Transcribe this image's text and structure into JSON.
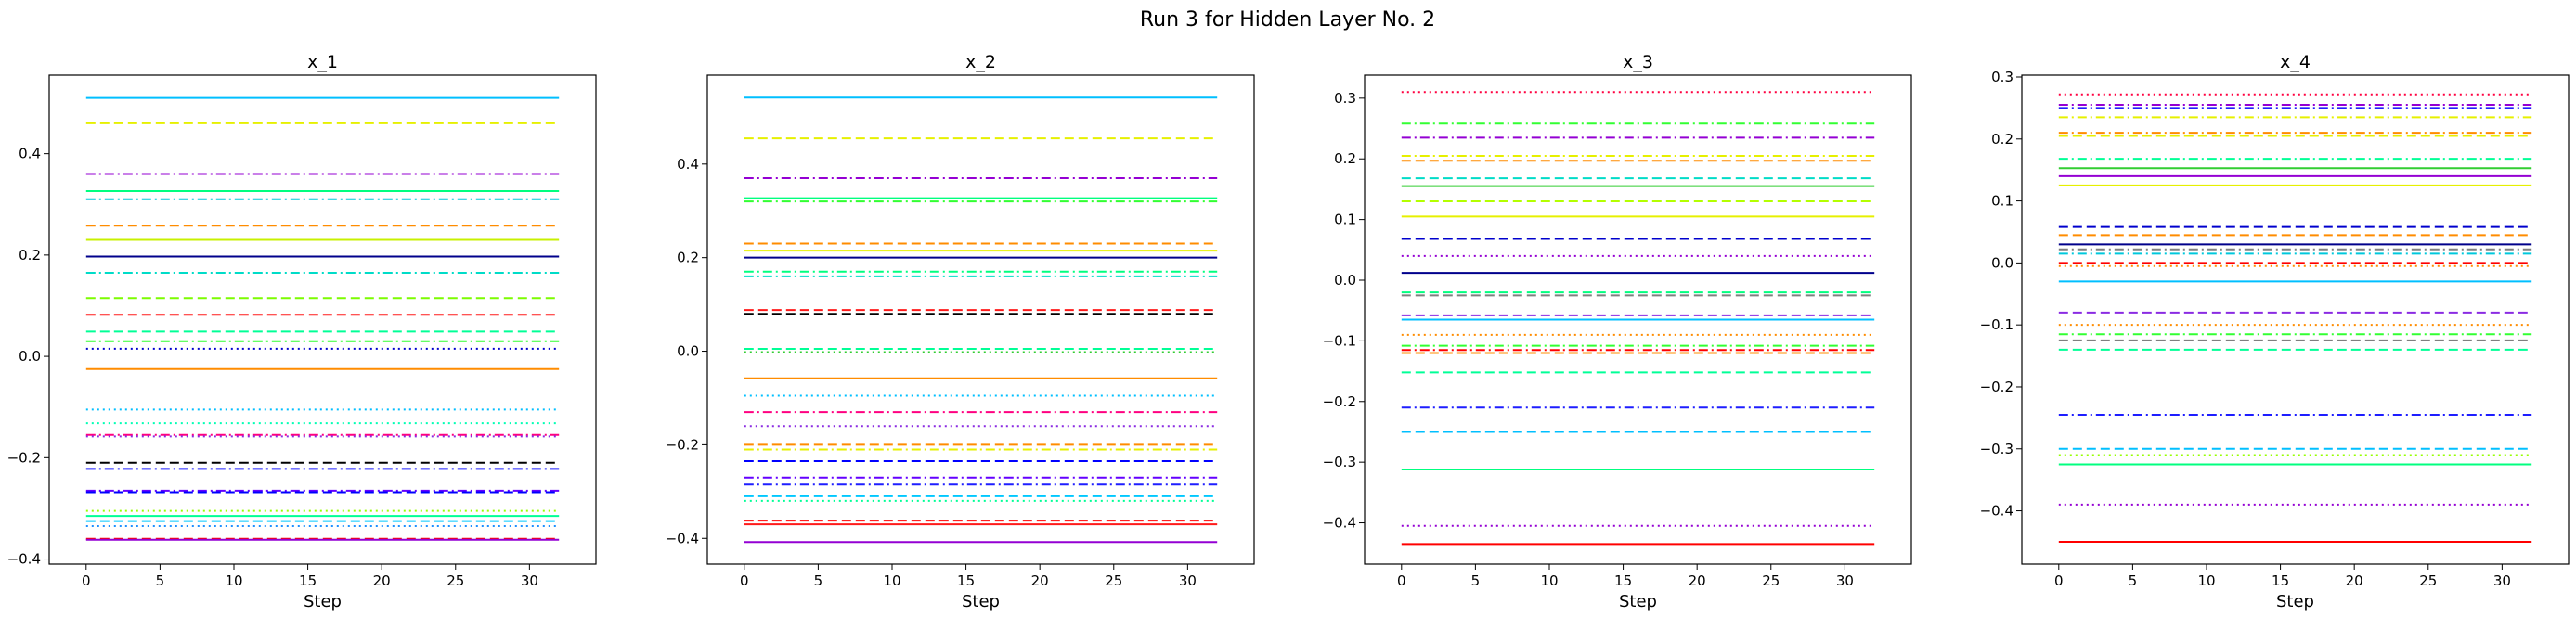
{
  "figure": {
    "title": "Run 3 for Hidden Layer No. 2"
  },
  "chart_data": [
    {
      "type": "line",
      "title": "x_1",
      "xlabel": "Step",
      "ylabel": "",
      "xlim": [
        -2.5,
        34.5
      ],
      "ylim": [
        -0.41,
        0.555
      ],
      "xticks": [
        0,
        5,
        10,
        15,
        20,
        25,
        30
      ],
      "yticks": [
        -0.4,
        -0.2,
        0.0,
        0.2,
        0.4
      ],
      "x_range": [
        0,
        32
      ],
      "series": [
        {
          "y": 0.51,
          "color": "#00bfff",
          "style": "solid"
        },
        {
          "y": 0.46,
          "color": "#e6f000",
          "style": "dashed"
        },
        {
          "y": 0.36,
          "color": "#9400d3",
          "style": "dashdot"
        },
        {
          "y": 0.326,
          "color": "#00ff7f",
          "style": "solid"
        },
        {
          "y": 0.31,
          "color": "#00c8dc",
          "style": "dashdot"
        },
        {
          "y": 0.258,
          "color": "#ff8c00",
          "style": "dashed"
        },
        {
          "y": 0.23,
          "color": "#c8f000",
          "style": "solid"
        },
        {
          "y": 0.197,
          "color": "#00008b",
          "style": "solid"
        },
        {
          "y": 0.165,
          "color": "#00dcc8",
          "style": "dashdot"
        },
        {
          "y": 0.115,
          "color": "#7cfc00",
          "style": "dashed"
        },
        {
          "y": 0.082,
          "color": "#ff1a1a",
          "style": "dashed"
        },
        {
          "y": 0.049,
          "color": "#00ff96",
          "style": "dashed"
        },
        {
          "y": 0.03,
          "color": "#32ff32",
          "style": "dashdot"
        },
        {
          "y": 0.015,
          "color": "#0000cd",
          "style": "dotted"
        },
        {
          "y": -0.025,
          "color": "#ff8c00",
          "style": "solid"
        },
        {
          "y": -0.105,
          "color": "#00bfff",
          "style": "dotted"
        },
        {
          "y": -0.132,
          "color": "#00ffb4",
          "style": "dotted"
        },
        {
          "y": -0.155,
          "color": "#ff0080",
          "style": "dashdot"
        },
        {
          "y": -0.158,
          "color": "#8a2be2",
          "style": "dotted"
        },
        {
          "y": -0.21,
          "color": "#000000",
          "style": "dashed"
        },
        {
          "y": -0.222,
          "color": "#1e1eff",
          "style": "dashdot"
        },
        {
          "y": -0.265,
          "color": "#6400ff",
          "style": "dashdot"
        },
        {
          "y": -0.268,
          "color": "#0000ff",
          "style": "dashed"
        },
        {
          "y": -0.305,
          "color": "#96ff00",
          "style": "dotted"
        },
        {
          "y": -0.315,
          "color": "#00ff96",
          "style": "solid"
        },
        {
          "y": -0.325,
          "color": "#00c8ff",
          "style": "dashed"
        },
        {
          "y": -0.335,
          "color": "#1e90ff",
          "style": "dotted"
        },
        {
          "y": -0.36,
          "color": "#ff0000",
          "style": "dashed"
        },
        {
          "y": -0.362,
          "color": "#9400d3",
          "style": "solid"
        }
      ]
    },
    {
      "type": "line",
      "title": "x_2",
      "xlabel": "Step",
      "ylabel": "",
      "xlim": [
        -2.5,
        34.5
      ],
      "ylim": [
        -0.455,
        0.59
      ],
      "xticks": [
        0,
        5,
        10,
        15,
        20,
        25,
        30
      ],
      "yticks": [
        -0.4,
        -0.2,
        0.0,
        0.2,
        0.4
      ],
      "x_range": [
        0,
        32
      ],
      "series": [
        {
          "y": 0.542,
          "color": "#00bfff",
          "style": "solid"
        },
        {
          "y": 0.455,
          "color": "#e6f000",
          "style": "dashed"
        },
        {
          "y": 0.37,
          "color": "#9400d3",
          "style": "dashdot"
        },
        {
          "y": 0.327,
          "color": "#00ff7f",
          "style": "solid"
        },
        {
          "y": 0.32,
          "color": "#32ff32",
          "style": "dashdot"
        },
        {
          "y": 0.23,
          "color": "#ff8c00",
          "style": "dashed"
        },
        {
          "y": 0.215,
          "color": "#e6f000",
          "style": "solid"
        },
        {
          "y": 0.2,
          "color": "#00008b",
          "style": "solid"
        },
        {
          "y": 0.17,
          "color": "#00ff7f",
          "style": "dashdot"
        },
        {
          "y": 0.16,
          "color": "#00dcc8",
          "style": "dashdot"
        },
        {
          "y": 0.088,
          "color": "#ff1a1a",
          "style": "dashed"
        },
        {
          "y": 0.08,
          "color": "#000000",
          "style": "dashed"
        },
        {
          "y": 0.005,
          "color": "#00ff96",
          "style": "dashed"
        },
        {
          "y": -0.002,
          "color": "#32cd32",
          "style": "dotted"
        },
        {
          "y": -0.058,
          "color": "#ff8c00",
          "style": "solid"
        },
        {
          "y": -0.095,
          "color": "#00bfff",
          "style": "dotted"
        },
        {
          "y": -0.13,
          "color": "#ff0080",
          "style": "dashdot"
        },
        {
          "y": -0.16,
          "color": "#8a2be2",
          "style": "dotted"
        },
        {
          "y": -0.2,
          "color": "#ff8c00",
          "style": "dashed"
        },
        {
          "y": -0.21,
          "color": "#e6f000",
          "style": "dashdot"
        },
        {
          "y": -0.235,
          "color": "#0000ff",
          "style": "dashed"
        },
        {
          "y": -0.27,
          "color": "#6400ff",
          "style": "dashdot"
        },
        {
          "y": -0.285,
          "color": "#1e1eff",
          "style": "dashdot"
        },
        {
          "y": -0.31,
          "color": "#00c8ff",
          "style": "dashed"
        },
        {
          "y": -0.32,
          "color": "#00ff96",
          "style": "dotted"
        },
        {
          "y": -0.362,
          "color": "#ff0000",
          "style": "dashed"
        },
        {
          "y": -0.37,
          "color": "#ff1a1a",
          "style": "solid"
        },
        {
          "y": -0.408,
          "color": "#9400d3",
          "style": "solid"
        }
      ]
    },
    {
      "type": "line",
      "title": "x_3",
      "xlabel": "Step",
      "ylabel": "",
      "xlim": [
        -2.5,
        34.5
      ],
      "ylim": [
        -0.468,
        0.338
      ],
      "xticks": [
        0,
        5,
        10,
        15,
        20,
        25,
        30
      ],
      "yticks": [
        -0.4,
        -0.3,
        -0.2,
        -0.1,
        0.0,
        0.1,
        0.2,
        0.3
      ],
      "x_range": [
        0,
        32
      ],
      "series": [
        {
          "y": 0.31,
          "color": "#ff0040",
          "style": "dotted"
        },
        {
          "y": 0.258,
          "color": "#32ff32",
          "style": "dashdot"
        },
        {
          "y": 0.235,
          "color": "#9400d3",
          "style": "dashdot"
        },
        {
          "y": 0.205,
          "color": "#e6f000",
          "style": "dashdot"
        },
        {
          "y": 0.197,
          "color": "#ff8c00",
          "style": "dashed"
        },
        {
          "y": 0.168,
          "color": "#00dcc8",
          "style": "dashed"
        },
        {
          "y": 0.155,
          "color": "#32cd32",
          "style": "solid"
        },
        {
          "y": 0.13,
          "color": "#b4ff00",
          "style": "dashed"
        },
        {
          "y": 0.105,
          "color": "#e6f000",
          "style": "solid"
        },
        {
          "y": 0.068,
          "color": "#0000cd",
          "style": "dashed"
        },
        {
          "y": 0.04,
          "color": "#9400d3",
          "style": "dotted"
        },
        {
          "y": 0.012,
          "color": "#00008b",
          "style": "solid"
        },
        {
          "y": -0.02,
          "color": "#00ff7f",
          "style": "dashed"
        },
        {
          "y": -0.025,
          "color": "#7f7f7f",
          "style": "dashed"
        },
        {
          "y": -0.058,
          "color": "#8a2be2",
          "style": "dashed"
        },
        {
          "y": -0.065,
          "color": "#00bfff",
          "style": "solid"
        },
        {
          "y": -0.09,
          "color": "#ff8c00",
          "style": "dotted"
        },
        {
          "y": -0.108,
          "color": "#32ff32",
          "style": "dashdot"
        },
        {
          "y": -0.115,
          "color": "#ff0000",
          "style": "dashdot"
        },
        {
          "y": -0.12,
          "color": "#ff8c00",
          "style": "dashed"
        },
        {
          "y": -0.152,
          "color": "#00ff96",
          "style": "dashed"
        },
        {
          "y": -0.21,
          "color": "#1e1eff",
          "style": "dashdot"
        },
        {
          "y": -0.25,
          "color": "#00bfff",
          "style": "dashed"
        },
        {
          "y": -0.312,
          "color": "#00ff7f",
          "style": "solid"
        },
        {
          "y": -0.405,
          "color": "#9400d3",
          "style": "dotted"
        },
        {
          "y": -0.435,
          "color": "#ff0000",
          "style": "solid"
        }
      ]
    },
    {
      "type": "line",
      "title": "x_4",
      "xlabel": "Step",
      "ylabel": "",
      "xlim": [
        -2.5,
        34.5
      ],
      "ylim": [
        -0.486,
        0.303
      ],
      "xticks": [
        0,
        5,
        10,
        15,
        20,
        25,
        30
      ],
      "yticks": [
        -0.4,
        -0.3,
        -0.2,
        -0.1,
        0.0,
        0.1,
        0.2,
        0.3
      ],
      "x_range": [
        0,
        32
      ],
      "series": [
        {
          "y": 0.272,
          "color": "#ff0040",
          "style": "dotted"
        },
        {
          "y": 0.255,
          "color": "#9400d3",
          "style": "dashdot"
        },
        {
          "y": 0.25,
          "color": "#1e1eff",
          "style": "dashdot"
        },
        {
          "y": 0.235,
          "color": "#e6f000",
          "style": "dashdot"
        },
        {
          "y": 0.21,
          "color": "#ff8c00",
          "style": "dashdot"
        },
        {
          "y": 0.205,
          "color": "#e6f000",
          "style": "dashed"
        },
        {
          "y": 0.168,
          "color": "#00ff96",
          "style": "dashdot"
        },
        {
          "y": 0.153,
          "color": "#32cd32",
          "style": "solid"
        },
        {
          "y": 0.14,
          "color": "#9400d3",
          "style": "solid"
        },
        {
          "y": 0.125,
          "color": "#e6f000",
          "style": "solid"
        },
        {
          "y": 0.058,
          "color": "#0000cd",
          "style": "dashed"
        },
        {
          "y": 0.045,
          "color": "#ff8c00",
          "style": "dashed"
        },
        {
          "y": 0.03,
          "color": "#00008b",
          "style": "solid"
        },
        {
          "y": 0.022,
          "color": "#7f7f7f",
          "style": "dashdot"
        },
        {
          "y": 0.015,
          "color": "#00c8dc",
          "style": "dashdot"
        },
        {
          "y": 0.0,
          "color": "#ff0000",
          "style": "dashed"
        },
        {
          "y": -0.005,
          "color": "#ff8c00",
          "style": "dotted"
        },
        {
          "y": -0.03,
          "color": "#00bfff",
          "style": "solid"
        },
        {
          "y": -0.08,
          "color": "#8a2be2",
          "style": "dashed"
        },
        {
          "y": -0.1,
          "color": "#ff8c00",
          "style": "dotted"
        },
        {
          "y": -0.115,
          "color": "#32ff32",
          "style": "dashdot"
        },
        {
          "y": -0.125,
          "color": "#7f7f7f",
          "style": "dashed"
        },
        {
          "y": -0.14,
          "color": "#00ff96",
          "style": "dashed"
        },
        {
          "y": -0.245,
          "color": "#1e1eff",
          "style": "dashdot"
        },
        {
          "y": -0.3,
          "color": "#00bfff",
          "style": "dashed"
        },
        {
          "y": -0.31,
          "color": "#96ff00",
          "style": "dotted"
        },
        {
          "y": -0.325,
          "color": "#00ff7f",
          "style": "solid"
        },
        {
          "y": -0.39,
          "color": "#9400d3",
          "style": "dotted"
        },
        {
          "y": -0.45,
          "color": "#ff0000",
          "style": "solid"
        }
      ]
    }
  ]
}
